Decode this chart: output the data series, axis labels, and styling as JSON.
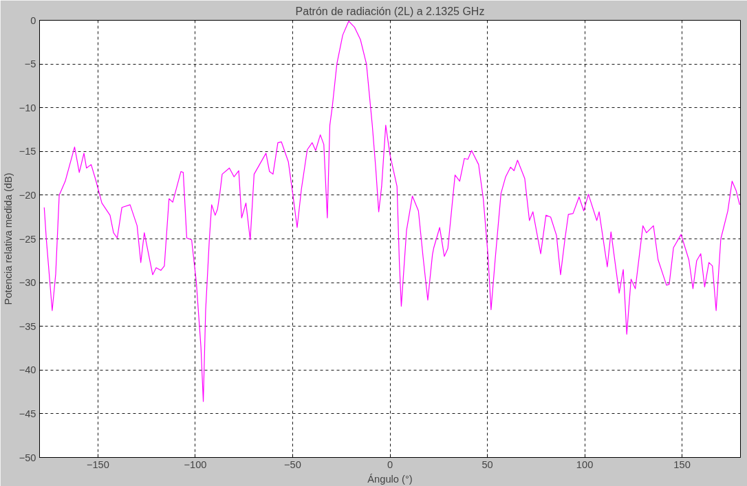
{
  "chart_data": {
    "type": "line",
    "title": "Patrón de radiación (2L) a 2.1325 GHz",
    "xlabel": "Ángulo (°)",
    "ylabel": "Potencia relativa medida (dB)",
    "xlim": [
      -180,
      180
    ],
    "ylim": [
      -50,
      0
    ],
    "xticks": [
      -150,
      -100,
      -50,
      0,
      50,
      100,
      150
    ],
    "yticks": [
      -50,
      -45,
      -40,
      -35,
      -30,
      -25,
      -20,
      -15,
      -10,
      -5,
      0
    ],
    "grid": true,
    "line_style": "solid",
    "series": [
      {
        "color": "#ff00ff",
        "x": [
          -177.6,
          -176.5,
          -173.5,
          -171.7,
          -169.9,
          -166.8,
          -162.0,
          -159.6,
          -157.2,
          -155.9,
          -153.5,
          -151.1,
          -148.0,
          -143.8,
          -142.0,
          -140.1,
          -137.7,
          -133.5,
          -129.9,
          -128.0,
          -126.2,
          -121.9,
          -120.1,
          -117.7,
          -115.9,
          -113.5,
          -111.6,
          -107.4,
          -106.2,
          -104.4,
          -101.9,
          -99.5,
          -97.1,
          -95.9,
          -94.7,
          -92.8,
          -91.6,
          -89.8,
          -88.6,
          -87.4,
          -86.2,
          -82.5,
          -80.1,
          -77.7,
          -76.2,
          -74.0,
          -71.8,
          -69.8,
          -63.7,
          -61.9,
          -60.1,
          -57.6,
          -55.8,
          -52.2,
          -49.8,
          -47.7,
          -45.5,
          -42.5,
          -40.0,
          -38.2,
          -35.8,
          -34.0,
          -32.2,
          -30.9,
          -29.7,
          -27.3,
          -24.3,
          -21.2,
          -18.2,
          -15.2,
          -12.1,
          -9.1,
          -7.3,
          -5.8,
          -4.3,
          -2.2,
          0,
          3.6,
          4.8,
          5.8,
          8.5,
          11.5,
          14.6,
          17.0,
          19.4,
          21.8,
          22.5,
          25.5,
          27.9,
          29.7,
          33.4,
          35.8,
          38.2,
          40.0,
          41.9,
          45.5,
          47.9,
          50.3,
          51.9,
          54.0,
          57.0,
          59.4,
          61.9,
          63.7,
          65.5,
          69.2,
          71.6,
          73.4,
          77.4,
          80.1,
          82.5,
          85.5,
          87.6,
          89.8,
          91.6,
          94.0,
          97.1,
          99.5,
          101.9,
          106.2,
          107.4,
          111.6,
          113.5,
          117.7,
          119.8,
          121.6,
          123.8,
          126.0,
          129.9,
          131.7,
          135.3,
          137.7,
          142.0,
          143.4,
          145.6,
          149.5,
          153.5,
          155.6,
          157.5,
          159.6,
          161.6,
          163.8,
          165.6,
          167.5,
          169.9,
          173.5,
          175.7,
          177.8,
          179.6
        ],
        "values": [
          -21.4,
          -25.1,
          -33.2,
          -29.0,
          -20.0,
          -18.4,
          -14.5,
          -17.4,
          -15.2,
          -16.9,
          -16.5,
          -18.3,
          -20.9,
          -22.3,
          -24.3,
          -24.9,
          -21.4,
          -21.1,
          -23.5,
          -27.7,
          -24.3,
          -29.1,
          -28.3,
          -28.6,
          -28.1,
          -20.4,
          -20.8,
          -17.3,
          -17.4,
          -24.9,
          -25.1,
          -29.9,
          -37.4,
          -43.6,
          -33.2,
          -25.1,
          -21.1,
          -22.3,
          -21.6,
          -19.8,
          -17.6,
          -16.9,
          -17.9,
          -17.2,
          -22.6,
          -20.9,
          -25.1,
          -17.6,
          -15.2,
          -17.3,
          -17.6,
          -14.0,
          -13.9,
          -16.2,
          -20.1,
          -23.7,
          -19.3,
          -14.8,
          -14.0,
          -14.9,
          -13.1,
          -14.2,
          -22.6,
          -12.0,
          -10.0,
          -5.0,
          -1.7,
          -0.1,
          -0.8,
          -2.2,
          -5.0,
          -12.0,
          -17.0,
          -21.9,
          -19.0,
          -12.0,
          -15.4,
          -19.0,
          -27.7,
          -32.7,
          -24.0,
          -20.1,
          -21.8,
          -27.1,
          -32.0,
          -26.8,
          -26.0,
          -23.7,
          -27.0,
          -26.1,
          -17.7,
          -18.4,
          -15.8,
          -15.9,
          -14.9,
          -16.5,
          -20.4,
          -26.8,
          -33.1,
          -27.4,
          -19.8,
          -17.9,
          -16.8,
          -17.2,
          -16.0,
          -18.1,
          -22.9,
          -21.9,
          -26.7,
          -22.3,
          -22.5,
          -24.6,
          -29.1,
          -25.1,
          -22.2,
          -22.1,
          -20.2,
          -21.8,
          -19.9,
          -22.9,
          -21.9,
          -28.2,
          -24.2,
          -31.2,
          -28.5,
          -35.9,
          -29.6,
          -30.7,
          -23.5,
          -24.3,
          -23.5,
          -27.4,
          -30.3,
          -30.2,
          -26.0,
          -24.5,
          -27.4,
          -30.7,
          -27.5,
          -26.7,
          -30.5,
          -27.7,
          -28.1,
          -33.2,
          -25.0,
          -21.8,
          -18.4,
          -19.5,
          -21.1
        ]
      }
    ]
  }
}
